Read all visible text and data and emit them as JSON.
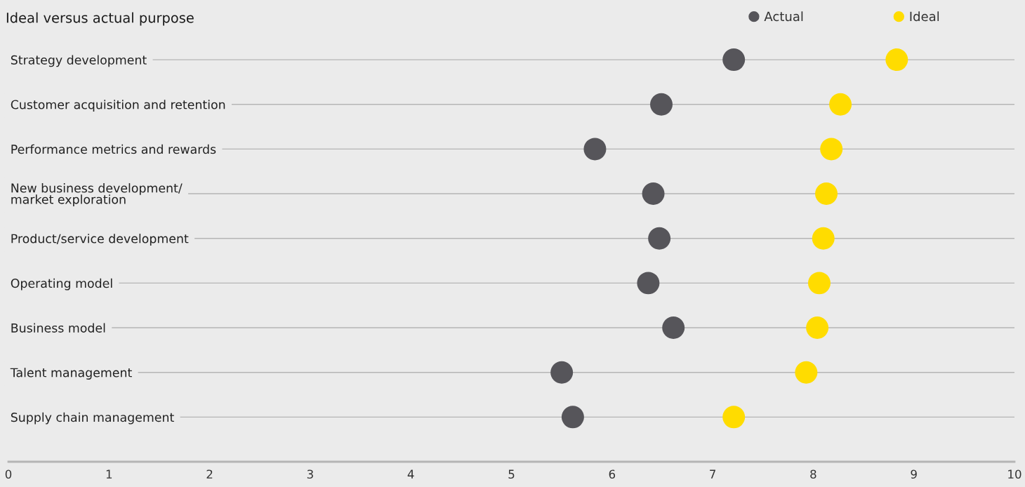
{
  "chart_data": {
    "type": "scatter",
    "title": "Ideal versus actual purpose",
    "orientation": "horizontal",
    "categories": [
      "Strategy development",
      "Customer acquisition and retention",
      "Performance metrics and rewards",
      "New business development/\nmarket exploration",
      "Product/service development",
      "Operating model",
      "Business model",
      "Talent management",
      "Supply chain management"
    ],
    "series": [
      {
        "name": "Actual",
        "color": "#56555a",
        "values": [
          7.21,
          6.49,
          5.83,
          6.41,
          6.47,
          6.36,
          6.61,
          5.5,
          5.61
        ]
      },
      {
        "name": "Ideal",
        "color": "#ffdc00",
        "values": [
          8.83,
          8.27,
          8.18,
          8.13,
          8.1,
          8.06,
          8.04,
          7.93,
          7.21
        ]
      }
    ],
    "xlim": [
      0,
      10
    ],
    "xticks": [
      0,
      1,
      2,
      3,
      4,
      5,
      6,
      7,
      8,
      9,
      10
    ],
    "grid": "y",
    "legend": "top right",
    "marker": "circle"
  }
}
